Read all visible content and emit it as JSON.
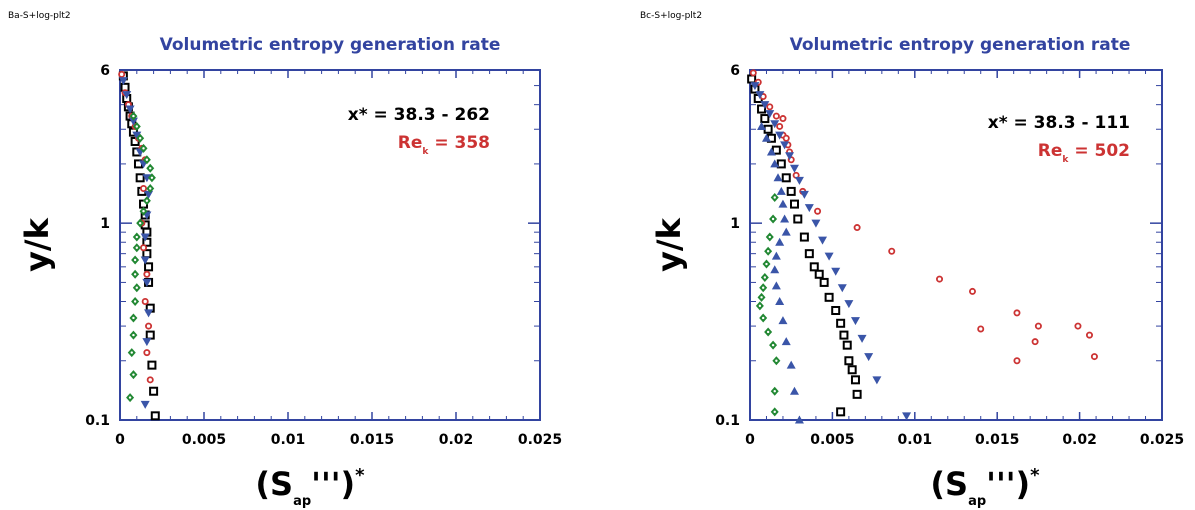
{
  "chart_data": [
    {
      "type": "scatter",
      "corner_label": "Ba-S+log-plt2",
      "title": "Volumetric  entropy  generation  rate",
      "ylabel": "y/k",
      "xlabel": {
        "base": "(S",
        "sub": "ap",
        "mid": "''')",
        "sup": "*"
      },
      "xlim": [
        0,
        0.025
      ],
      "ylim": [
        0.1,
        6
      ],
      "y_scale": "log",
      "x_ticks": [
        "0",
        "0.005",
        "0.01",
        "0.015",
        "0.02",
        "0.025"
      ],
      "x_tick_values": [
        0,
        0.005,
        0.01,
        0.015,
        0.02,
        0.025
      ],
      "y_ticks": [
        "0.1",
        "1",
        "6"
      ],
      "y_tick_values": [
        0.1,
        1,
        6
      ],
      "annotation": {
        "line1": "x* = 38.3 - 262",
        "re_base": "Re",
        "re_sub": "k",
        "re_value": "=  358"
      },
      "series": [
        {
          "color": "#000000",
          "marker": "square",
          "x": [
            0.0002,
            0.0003,
            0.0004,
            0.0005,
            0.0006,
            0.0007,
            0.0008,
            0.0009,
            0.001,
            0.0011,
            0.0012,
            0.0013,
            0.0014,
            0.0015,
            0.0015,
            0.0016,
            0.0016,
            0.0016,
            0.0017,
            0.0017,
            0.0018,
            0.0018,
            0.0019,
            0.002,
            0.0021
          ],
          "y": [
            5.6,
            4.9,
            4.3,
            3.9,
            3.5,
            3.2,
            2.9,
            2.6,
            2.3,
            2.0,
            1.7,
            1.45,
            1.25,
            1.1,
            0.98,
            0.9,
            0.8,
            0.7,
            0.6,
            0.5,
            0.37,
            0.27,
            0.19,
            0.14,
            0.105
          ]
        },
        {
          "color": "#cc3333",
          "marker": "circle",
          "x": [
            0.0001,
            0.0003,
            0.0005,
            0.0007,
            0.0009,
            0.0011,
            0.0013,
            0.0015,
            0.0014,
            0.0013,
            0.0014,
            0.0016,
            0.0015,
            0.0017,
            0.0016,
            0.0018
          ],
          "y": [
            5.7,
            4.6,
            4.0,
            3.5,
            3.1,
            2.7,
            2.4,
            2.1,
            1.5,
            1.0,
            0.75,
            0.55,
            0.4,
            0.3,
            0.22,
            0.16
          ]
        },
        {
          "color": "#3a55a8",
          "marker": "triangle-down",
          "x": [
            0.0002,
            0.0004,
            0.0006,
            0.0008,
            0.001,
            0.0012,
            0.0014,
            0.0016,
            0.0017,
            0.0016,
            0.0015,
            0.0015,
            0.0016,
            0.0017,
            0.0016,
            0.0015
          ],
          "y": [
            5.3,
            4.5,
            3.8,
            3.3,
            2.8,
            2.3,
            2.0,
            1.7,
            1.4,
            1.1,
            0.85,
            0.65,
            0.5,
            0.35,
            0.25,
            0.12
          ]
        },
        {
          "color": "#228833",
          "marker": "diamond",
          "x": [
            0.0008,
            0.001,
            0.0012,
            0.0014,
            0.0016,
            0.0018,
            0.0019,
            0.0018,
            0.0016,
            0.0014,
            0.0012,
            0.001,
            0.001,
            0.0009,
            0.0009,
            0.001,
            0.0009,
            0.0008,
            0.0008,
            0.0007,
            0.0008,
            0.0006
          ],
          "y": [
            3.5,
            3.1,
            2.7,
            2.4,
            2.1,
            1.9,
            1.7,
            1.5,
            1.3,
            1.15,
            1.0,
            0.85,
            0.75,
            0.65,
            0.55,
            0.47,
            0.4,
            0.33,
            0.27,
            0.22,
            0.17,
            0.13
          ]
        }
      ]
    },
    {
      "type": "scatter",
      "corner_label": "Bc-S+log-plt2",
      "title": "Volumetric  entropy  generation  rate",
      "ylabel": "y/k",
      "xlabel": {
        "base": "(S",
        "sub": "ap",
        "mid": "''')",
        "sup": "*"
      },
      "xlim": [
        0,
        0.025
      ],
      "ylim": [
        0.1,
        6
      ],
      "y_scale": "log",
      "x_ticks": [
        "0",
        "0.005",
        "0.01",
        "0.015",
        "0.02",
        "0.025"
      ],
      "x_tick_values": [
        0,
        0.005,
        0.01,
        0.015,
        0.02,
        0.025
      ],
      "y_ticks": [
        "0.1",
        "1",
        "6"
      ],
      "y_tick_values": [
        0.1,
        1,
        6
      ],
      "annotation": {
        "line1": "x* = 38.3 - 111",
        "re_base": "Re",
        "re_sub": "k",
        "re_value": "=  502"
      },
      "series": [
        {
          "color": "#000000",
          "marker": "square",
          "x": [
            0.0001,
            0.0003,
            0.0005,
            0.0007,
            0.0009,
            0.0011,
            0.0013,
            0.0016,
            0.0019,
            0.0022,
            0.0025,
            0.0027,
            0.0029,
            0.0033,
            0.0036,
            0.0039,
            0.0042,
            0.0045,
            0.0048,
            0.0052,
            0.0055,
            0.0057,
            0.0059,
            0.006,
            0.0062,
            0.0064,
            0.0065,
            0.0055
          ],
          "y": [
            5.4,
            4.8,
            4.3,
            3.8,
            3.4,
            3.0,
            2.7,
            2.35,
            2.0,
            1.7,
            1.45,
            1.25,
            1.05,
            0.85,
            0.7,
            0.6,
            0.55,
            0.5,
            0.42,
            0.36,
            0.31,
            0.27,
            0.24,
            0.2,
            0.18,
            0.16,
            0.135,
            0.11
          ]
        },
        {
          "color": "#cc3333",
          "marker": "circle",
          "x": [
            0.0002,
            0.0005,
            0.0008,
            0.0012,
            0.0016,
            0.0018,
            0.002,
            0.0023,
            0.0025,
            0.0028,
            0.0032,
            0.0041,
            0.0065,
            0.0086,
            0.0115,
            0.0135,
            0.0162,
            0.0175,
            0.0173,
            0.014,
            0.0162,
            0.0199,
            0.0206,
            0.0209,
            0.002,
            0.0022,
            0.0024
          ],
          "y": [
            5.8,
            5.2,
            4.4,
            3.9,
            3.5,
            3.1,
            2.8,
            2.5,
            2.1,
            1.75,
            1.45,
            1.15,
            0.95,
            0.72,
            0.52,
            0.45,
            0.35,
            0.3,
            0.25,
            0.29,
            0.2,
            0.3,
            0.27,
            0.21,
            3.4,
            2.7,
            2.3
          ]
        },
        {
          "color": "#3a55a8",
          "marker": "triangle-down",
          "x": [
            0.0003,
            0.0006,
            0.0009,
            0.0012,
            0.0015,
            0.0018,
            0.0021,
            0.0024,
            0.0027,
            0.003,
            0.0033,
            0.0036,
            0.004,
            0.0044,
            0.0048,
            0.0052,
            0.0056,
            0.006,
            0.0064,
            0.0068,
            0.0072,
            0.0077,
            0.0095
          ],
          "y": [
            5.0,
            4.5,
            4.0,
            3.6,
            3.2,
            2.8,
            2.5,
            2.2,
            1.9,
            1.65,
            1.4,
            1.2,
            1.0,
            0.82,
            0.68,
            0.57,
            0.47,
            0.39,
            0.32,
            0.26,
            0.21,
            0.16,
            0.105
          ]
        },
        {
          "color": "#3a55a8",
          "marker": "triangle-up",
          "x": [
            0.0007,
            0.001,
            0.0013,
            0.0015,
            0.0017,
            0.0019,
            0.002,
            0.0021,
            0.0022,
            0.0018,
            0.0016,
            0.0015,
            0.0016,
            0.0018,
            0.002,
            0.0022,
            0.0025,
            0.0027,
            0.003
          ],
          "y": [
            3.1,
            2.7,
            2.3,
            2.0,
            1.7,
            1.45,
            1.25,
            1.05,
            0.9,
            0.8,
            0.68,
            0.58,
            0.48,
            0.4,
            0.32,
            0.25,
            0.19,
            0.14,
            0.1
          ]
        },
        {
          "color": "#228833",
          "marker": "diamond",
          "x": [
            0.0015,
            0.0014,
            0.0012,
            0.0011,
            0.001,
            0.0009,
            0.0008,
            0.0007,
            0.0006,
            0.0008,
            0.0011,
            0.0014,
            0.0016,
            0.0015,
            0.0015
          ],
          "y": [
            1.35,
            1.05,
            0.85,
            0.72,
            0.62,
            0.53,
            0.47,
            0.42,
            0.38,
            0.33,
            0.28,
            0.24,
            0.2,
            0.14,
            0.11
          ]
        }
      ]
    }
  ]
}
